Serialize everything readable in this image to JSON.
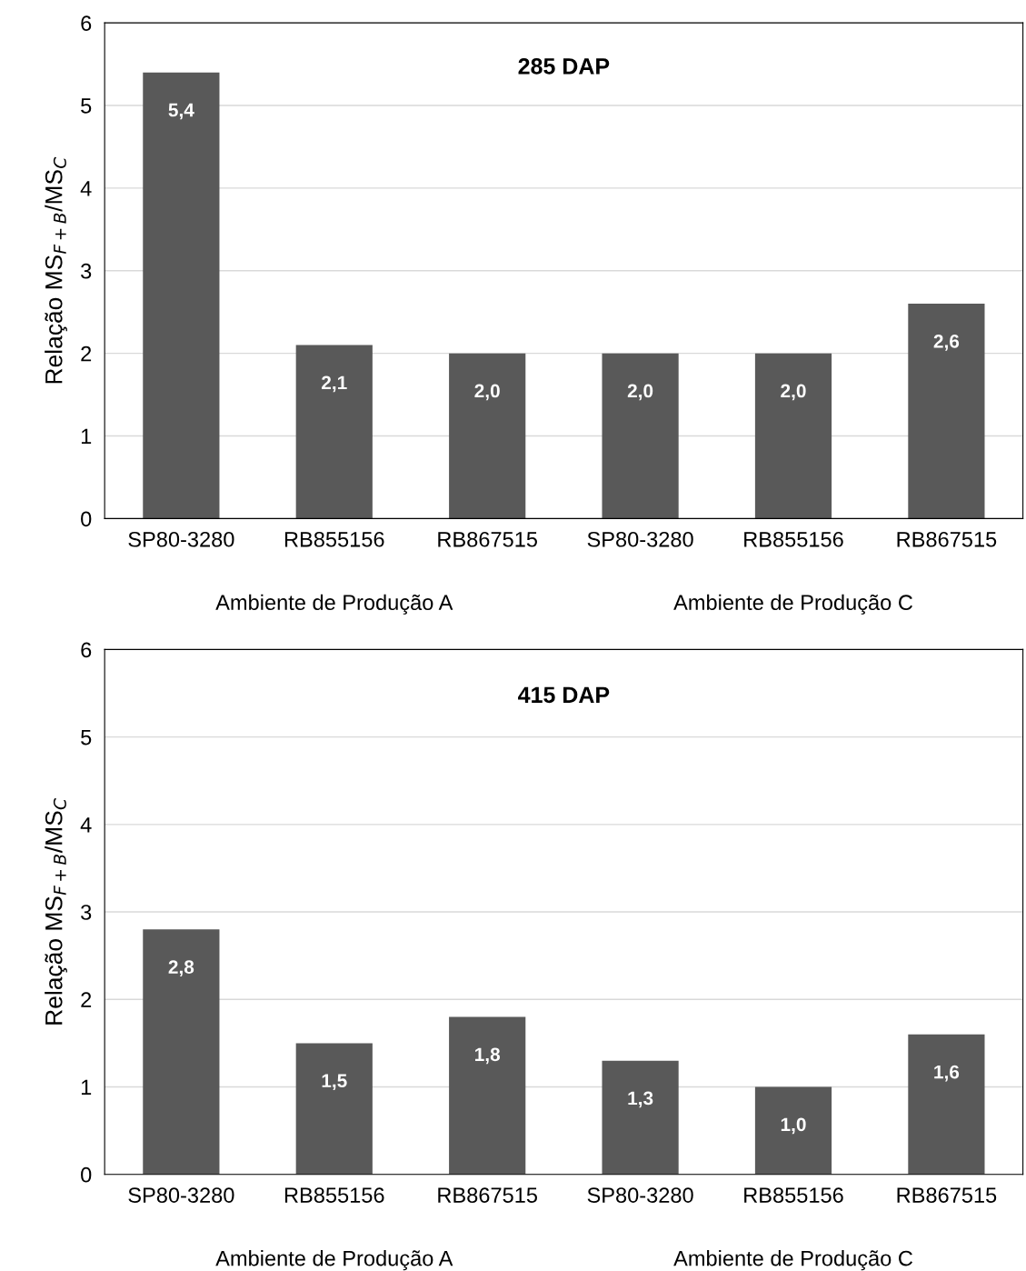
{
  "chart_data": [
    {
      "type": "bar",
      "title": "285 DAP",
      "ylabel": "Relação MS$_{F+B}$/MS$_{C}$",
      "categories": [
        "SP80-3280",
        "RB855156",
        "RB867515",
        "SP80-3280",
        "RB855156",
        "RB867515"
      ],
      "series": [
        {
          "color": "#595959",
          "values": [
            5.4,
            2.1,
            2.0,
            2.0,
            2.0,
            2.6
          ],
          "value_labels": [
            "5,4",
            "2,1",
            "2,0",
            "2,0",
            "2,0",
            "2,6"
          ]
        }
      ],
      "ylim": [
        0,
        6
      ],
      "yticks": [
        0,
        1,
        2,
        3,
        4,
        5,
        6
      ],
      "grid": "y",
      "legend": false,
      "annotations": [
        "Ambiente de Produção A",
        "Ambiente de Produção C"
      ]
    },
    {
      "type": "bar",
      "title": "415 DAP",
      "ylabel": "Relação MS$_{F+B}$/MS$_{C}$",
      "categories": [
        "SP80-3280",
        "RB855156",
        "RB867515",
        "SP80-3280",
        "RB855156",
        "RB867515"
      ],
      "series": [
        {
          "color": "#595959",
          "values": [
            2.8,
            1.5,
            1.8,
            1.3,
            1.0,
            1.6
          ],
          "value_labels": [
            "2,8",
            "1,5",
            "1,8",
            "1,3",
            "1,0",
            "1,6"
          ]
        }
      ],
      "ylim": [
        0,
        6
      ],
      "yticks": [
        0,
        1,
        2,
        3,
        4,
        5,
        6
      ],
      "grid": "y",
      "legend": false,
      "annotations": [
        "Ambiente de Produção A",
        "Ambiente de Produção C"
      ]
    }
  ]
}
